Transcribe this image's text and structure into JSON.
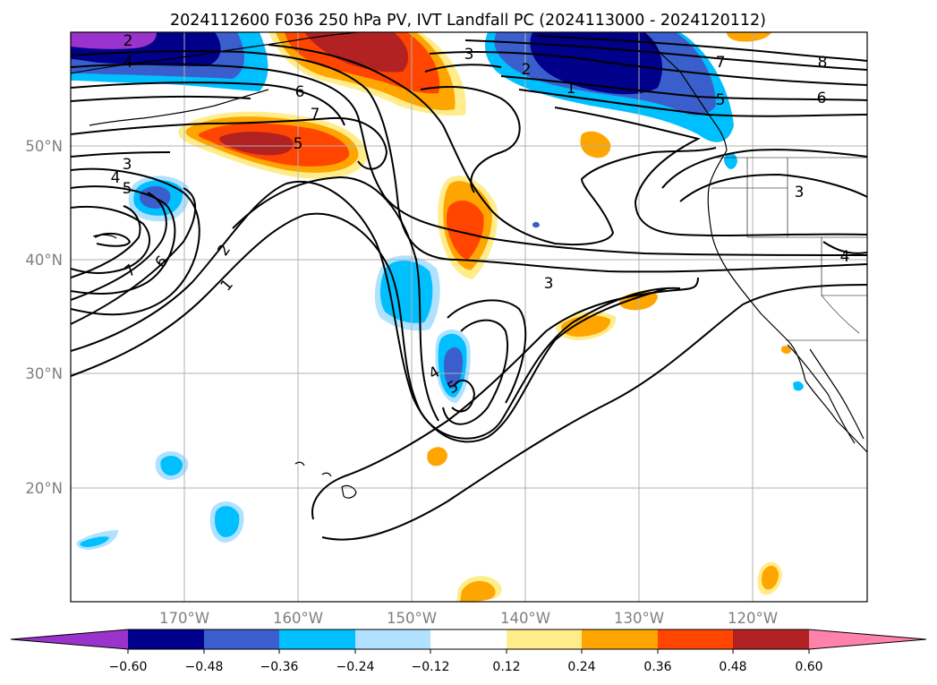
{
  "title": "2024112600 F036 250 hPa PV, IVT Landfall PC (2024113000 - 2024120112)",
  "map": {
    "lon_range": [
      -180,
      -110
    ],
    "lat_range": [
      10,
      60
    ],
    "lon_ticks": [
      "170°W",
      "160°W",
      "150°W",
      "140°W",
      "130°W",
      "120°W"
    ],
    "lat_ticks": [
      "50°N",
      "40°N",
      "30°N",
      "20°N"
    ],
    "gridlines": true
  },
  "colorbar": {
    "orientation": "horizontal",
    "extend": "both",
    "tick_labels": [
      "−0.60",
      "−0.48",
      "−0.36",
      "−0.24",
      "−0.12",
      "0.12",
      "0.24",
      "0.36",
      "0.48",
      "0.60"
    ],
    "colors": {
      "under": "#9933cc",
      "c1": "#00008b",
      "c2": "#3a5fcd",
      "c3": "#00bfff",
      "c4": "#b0e2ff",
      "c5": "#ffffff",
      "c6": "#ffec8b",
      "c7": "#ffa500",
      "c8": "#ff4500",
      "c9": "#b22222",
      "over": "#ff82ab"
    }
  },
  "contour_labels": [
    "2",
    "4",
    "6",
    "7",
    "3",
    "2",
    "7",
    "8",
    "6",
    "5",
    "1",
    "5",
    "3",
    "4",
    "5",
    "6",
    "7",
    "2",
    "1",
    "3",
    "3",
    "4",
    "4",
    "5"
  ]
}
